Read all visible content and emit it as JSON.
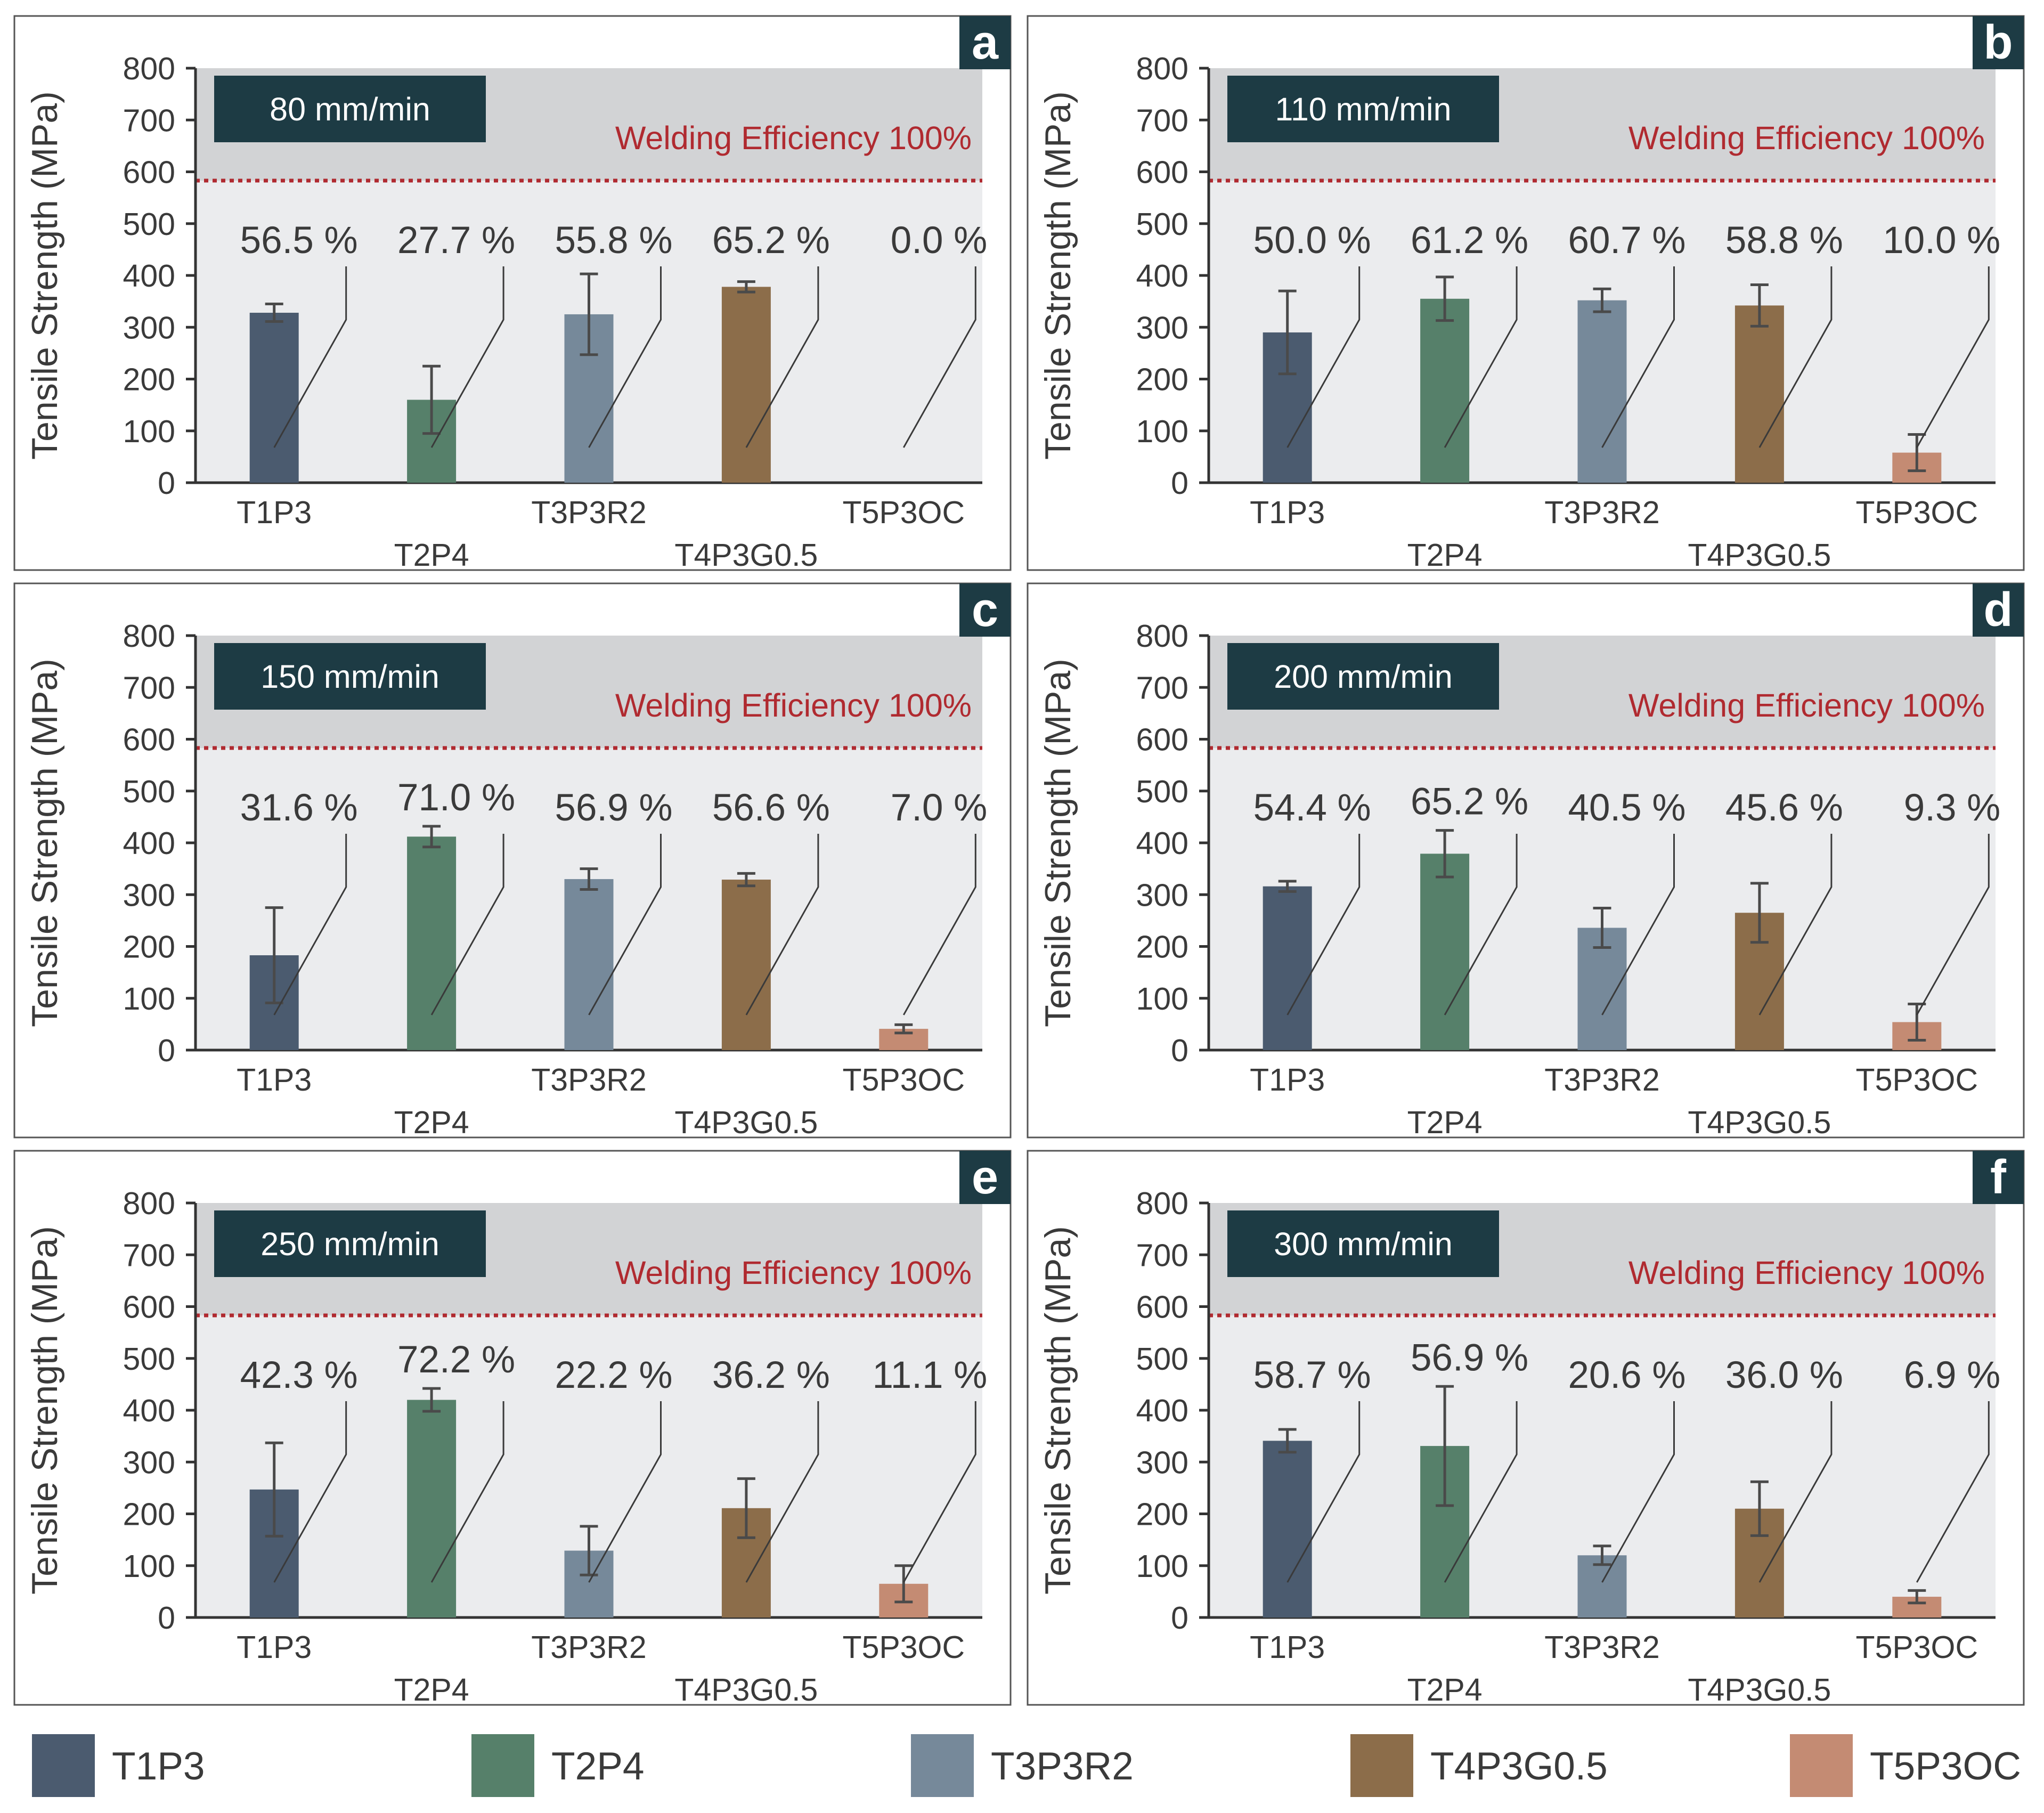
{
  "colors": {
    "panel_bg": "#ebecee",
    "shade": "#d2d3d5",
    "efficiency_line": "#b02a30",
    "label_box": "#1d3b44",
    "axis": "#333333",
    "text": "#3a3a3a",
    "T1P3": "#4b5b6f",
    "T2P4": "#56806a",
    "T3P3R2": "#76899a",
    "T4P3G0.5": "#8c6d4a",
    "T5P3OC": "#c48b73"
  },
  "ylabel": "Tensile Strength (MPa)",
  "efficiency_label": "Welding Efficiency 100%",
  "legend": [
    "T1P3",
    "T2P4",
    "T3P3R2",
    "T4P3G0.5",
    "T5P3OC"
  ],
  "chart_data": [
    {
      "type": "bar",
      "panel": "a",
      "speed": "80 mm/min",
      "categories": [
        "T1P3",
        "T2P4",
        "T3P3R2",
        "T4P3G0.5",
        "T5P3OC"
      ],
      "values": [
        328,
        160,
        325,
        378,
        0
      ],
      "errors": [
        17,
        65,
        78,
        10,
        0
      ],
      "efficiency_labels": [
        "56.5 %",
        "27.7 %",
        "55.8 %",
        "65.2 %",
        "0.0 %"
      ],
      "efficiency_line": 583,
      "ylim": [
        0,
        800
      ],
      "yticks": [
        "0",
        "100",
        "200",
        "300",
        "400",
        "500",
        "600",
        "700",
        "800"
      ]
    },
    {
      "type": "bar",
      "panel": "b",
      "speed": "110 mm/min",
      "categories": [
        "T1P3",
        "T2P4",
        "T3P3R2",
        "T4P3G0.5",
        "T5P3OC"
      ],
      "values": [
        290,
        355,
        352,
        342,
        58
      ],
      "errors": [
        80,
        42,
        22,
        40,
        35
      ],
      "efficiency_labels": [
        "50.0 %",
        "61.2 %",
        "60.7 %",
        "58.8 %",
        "10.0 %"
      ],
      "efficiency_line": 583,
      "ylim": [
        0,
        800
      ],
      "yticks": [
        "0",
        "100",
        "200",
        "300",
        "400",
        "500",
        "600",
        "700",
        "800"
      ]
    },
    {
      "type": "bar",
      "panel": "c",
      "speed": "150 mm/min",
      "categories": [
        "T1P3",
        "T2P4",
        "T3P3R2",
        "T4P3G0.5",
        "T5P3OC"
      ],
      "values": [
        183,
        412,
        330,
        329,
        41
      ],
      "errors": [
        92,
        20,
        20,
        12,
        8
      ],
      "efficiency_labels": [
        "31.6 %",
        "71.0 %",
        "56.9 %",
        "56.6 %",
        "7.0 %"
      ],
      "efficiency_line": 583,
      "ylim": [
        0,
        800
      ],
      "yticks": [
        "0",
        "100",
        "200",
        "300",
        "400",
        "500",
        "600",
        "700",
        "800"
      ]
    },
    {
      "type": "bar",
      "panel": "d",
      "speed": "200 mm/min",
      "categories": [
        "T1P3",
        "T2P4",
        "T3P3R2",
        "T4P3G0.5",
        "T5P3OC"
      ],
      "values": [
        316,
        379,
        236,
        265,
        54
      ],
      "errors": [
        10,
        45,
        38,
        57,
        35
      ],
      "efficiency_labels": [
        "54.4 %",
        "65.2 %",
        "40.5 %",
        "45.6 %",
        "9.3 %"
      ],
      "efficiency_line": 583,
      "ylim": [
        0,
        800
      ],
      "yticks": [
        "0",
        "100",
        "200",
        "300",
        "400",
        "500",
        "600",
        "700",
        "800"
      ]
    },
    {
      "type": "bar",
      "panel": "e",
      "speed": "250 mm/min",
      "categories": [
        "T1P3",
        "T2P4",
        "T3P3R2",
        "T4P3G0.5",
        "T5P3OC"
      ],
      "values": [
        247,
        420,
        129,
        211,
        65
      ],
      "errors": [
        90,
        22,
        47,
        57,
        35
      ],
      "efficiency_labels": [
        "42.3 %",
        "72.2 %",
        "22.2 %",
        "36.2 %",
        "11.1 %"
      ],
      "efficiency_line": 583,
      "ylim": [
        0,
        800
      ],
      "yticks": [
        "0",
        "100",
        "200",
        "300",
        "400",
        "500",
        "600",
        "700",
        "800"
      ]
    },
    {
      "type": "bar",
      "panel": "f",
      "speed": "300 mm/min",
      "categories": [
        "T1P3",
        "T2P4",
        "T3P3R2",
        "T4P3G0.5",
        "T5P3OC"
      ],
      "values": [
        341,
        331,
        120,
        210,
        40
      ],
      "errors": [
        22,
        115,
        18,
        52,
        12
      ],
      "efficiency_labels": [
        "58.7 %",
        "56.9 %",
        "20.6 %",
        "36.0 %",
        "6.9 %"
      ],
      "efficiency_line": 583,
      "ylim": [
        0,
        800
      ],
      "yticks": [
        "0",
        "100",
        "200",
        "300",
        "400",
        "500",
        "600",
        "700",
        "800"
      ]
    }
  ]
}
